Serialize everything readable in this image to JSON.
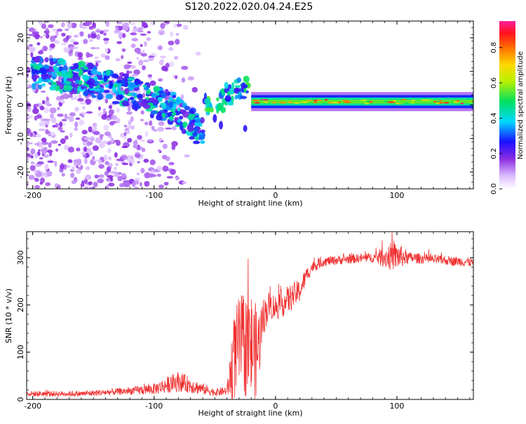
{
  "title": "S120.2022.020.04.24.E25",
  "chart_data": [
    {
      "type": "heatmap",
      "xlabel": "Height of straight line (km)",
      "ylabel": "Frequency (Hz)",
      "xlim": [
        -205,
        163
      ],
      "ylim": [
        -25,
        25
      ],
      "xticks": [
        -200,
        -100,
        0,
        100
      ],
      "yticks": [
        -20,
        -10,
        0,
        10,
        20
      ],
      "colorbar": {
        "label": "Normalized spectral amplitude",
        "range": [
          0.0,
          0.95
        ],
        "ticks": [
          "0.0",
          "0.2",
          "0.4",
          "0.6",
          "0.8"
        ],
        "tick_values": [
          0.0,
          0.2,
          0.4,
          0.6,
          0.8
        ],
        "colormap": "rainbow (white-violet-blue-cyan-green-yellow-orange-red-magenta)"
      },
      "features": [
        {
          "name": "diffuse scatter",
          "x_range": [
            -205,
            -60
          ],
          "freq_range": [
            -25,
            25
          ],
          "amplitude": 0.1
        },
        {
          "name": "descending band",
          "x": [
            -200,
            -180,
            -160,
            -140,
            -120,
            -100,
            -85,
            -70,
            -60
          ],
          "freq": [
            10,
            9,
            8,
            6,
            4,
            1,
            -1,
            -5,
            -9
          ],
          "amplitude": 0.3
        },
        {
          "name": "transition blobs",
          "x": [
            -55,
            -45,
            -38,
            -30,
            -25
          ],
          "freq": [
            0,
            1,
            3,
            5,
            5
          ],
          "amplitude": 0.35
        },
        {
          "name": "steady band",
          "x_range": [
            -20,
            163
          ],
          "freq_center": 1,
          "freq_halfwidth": 1.5,
          "amplitude": 0.55
        }
      ]
    },
    {
      "type": "line",
      "xlabel": "Height of straight line (km)",
      "ylabel": "SNR (10 * v/v)",
      "xlim": [
        -205,
        163
      ],
      "ylim": [
        0,
        355
      ],
      "xticks": [
        -200,
        -100,
        0,
        100
      ],
      "yticks": [
        0,
        100,
        200,
        300
      ],
      "series": [
        {
          "color": "#f03030",
          "envelope_x": [
            -205,
            -160,
            -120,
            -100,
            -80,
            -60,
            -50,
            -40,
            -35,
            -30,
            -20,
            -15,
            -10,
            -5,
            0,
            10,
            20,
            25,
            30,
            40,
            60,
            80,
            95,
            100,
            110,
            130,
            163
          ],
          "envelope_mean": [
            12,
            12,
            18,
            22,
            38,
            22,
            15,
            18,
            80,
            120,
            110,
            100,
            175,
            200,
            195,
            210,
            230,
            260,
            280,
            292,
            297,
            300,
            302,
            303,
            300,
            296,
            290
          ],
          "envelope_amp": [
            6,
            6,
            8,
            12,
            22,
            12,
            8,
            10,
            90,
            100,
            120,
            95,
            40,
            30,
            28,
            30,
            25,
            18,
            12,
            10,
            10,
            10,
            30,
            30,
            12,
            10,
            10
          ]
        }
      ]
    }
  ]
}
